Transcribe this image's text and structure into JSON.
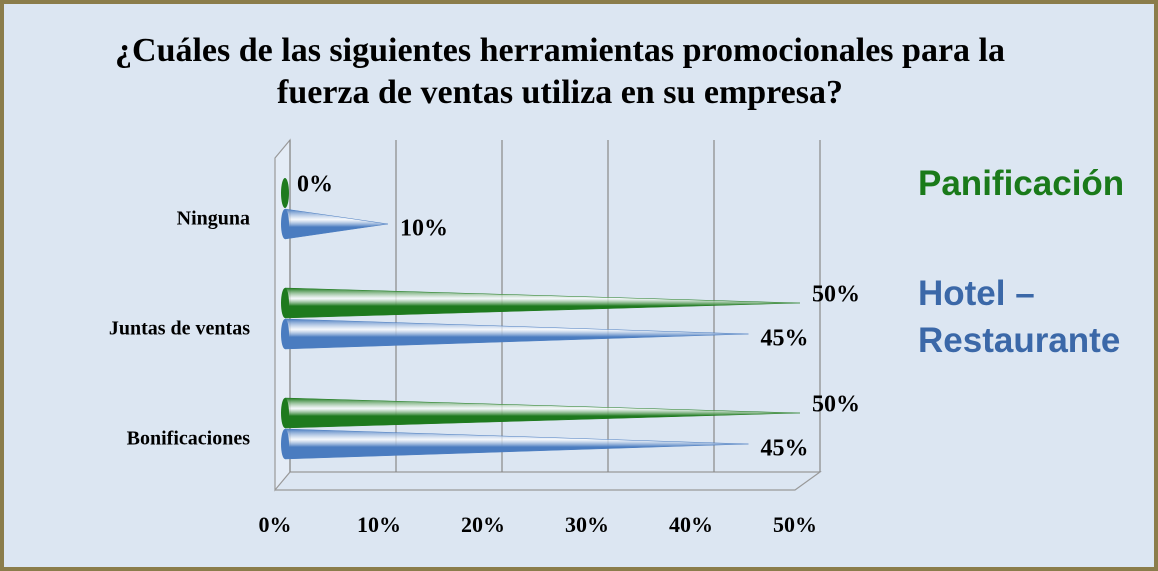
{
  "chart_data": {
    "type": "bar",
    "orientation": "horizontal",
    "title": "¿Cuáles de las siguientes herramientas promocionales para la fuerza de ventas utiliza en su empresa?",
    "categories": [
      "Ninguna",
      "Juntas de ventas",
      "Bonificaciones"
    ],
    "series": [
      {
        "name": "Panificación",
        "color": "#1e7a1e",
        "values": [
          0,
          50,
          50
        ],
        "value_labels": [
          "0%",
          "50%",
          "50%"
        ]
      },
      {
        "name": "Hotel – Restaurante",
        "color": "#4a7cc0",
        "values": [
          10,
          45,
          45
        ],
        "value_labels": [
          "10%",
          "45%",
          "45%"
        ]
      }
    ],
    "xlim": [
      0,
      50
    ],
    "xticks": [
      {
        "value": 0,
        "label": "0%"
      },
      {
        "value": 10,
        "label": "10%"
      },
      {
        "value": 20,
        "label": "20%"
      },
      {
        "value": 30,
        "label": "30%"
      },
      {
        "value": 40,
        "label": "40%"
      },
      {
        "value": 50,
        "label": "50%"
      }
    ],
    "grid": true,
    "legend": "right"
  }
}
